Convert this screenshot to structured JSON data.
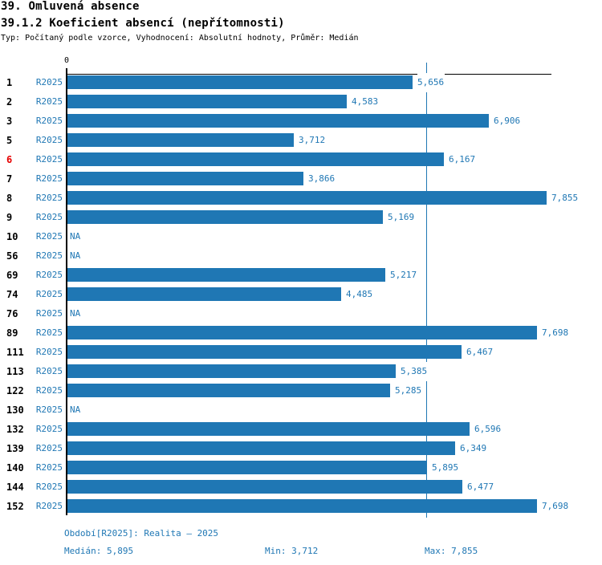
{
  "header": {
    "title1": "39. Omluvená absence",
    "title2": "39.1.2 Koeficient absencí (nepřítomnosti)",
    "subtitle": "Typ: Počítaný podle vzorce, Vyhodnocení: Absolutní hodnoty, Průměr: Medián"
  },
  "chart_data": {
    "type": "bar",
    "orientation": "horizontal",
    "axis": {
      "origin_label": "0"
    },
    "period_label": "R2025",
    "na_label": "NA",
    "median_value": 5895,
    "categories": [
      "1",
      "2",
      "3",
      "5",
      "6",
      "7",
      "8",
      "9",
      "10",
      "56",
      "69",
      "74",
      "76",
      "89",
      "111",
      "113",
      "122",
      "130",
      "132",
      "139",
      "140",
      "144",
      "152"
    ],
    "rows": [
      {
        "id": "1",
        "period": "R2025",
        "value": 5656,
        "label": "5,656"
      },
      {
        "id": "2",
        "period": "R2025",
        "value": 4583,
        "label": "4,583"
      },
      {
        "id": "3",
        "period": "R2025",
        "value": 6906,
        "label": "6,906"
      },
      {
        "id": "5",
        "period": "R2025",
        "value": 3712,
        "label": "3,712"
      },
      {
        "id": "6",
        "period": "R2025",
        "value": 6167,
        "label": "6,167",
        "highlight": true
      },
      {
        "id": "7",
        "period": "R2025",
        "value": 3866,
        "label": "3,866"
      },
      {
        "id": "8",
        "period": "R2025",
        "value": 7855,
        "label": "7,855"
      },
      {
        "id": "9",
        "period": "R2025",
        "value": 5169,
        "label": "5,169"
      },
      {
        "id": "10",
        "period": "R2025",
        "value": null,
        "label": "NA"
      },
      {
        "id": "56",
        "period": "R2025",
        "value": null,
        "label": "NA"
      },
      {
        "id": "69",
        "period": "R2025",
        "value": 5217,
        "label": "5,217"
      },
      {
        "id": "74",
        "period": "R2025",
        "value": 4485,
        "label": "4,485"
      },
      {
        "id": "76",
        "period": "R2025",
        "value": null,
        "label": "NA"
      },
      {
        "id": "89",
        "period": "R2025",
        "value": 7698,
        "label": "7,698"
      },
      {
        "id": "111",
        "period": "R2025",
        "value": 6467,
        "label": "6,467"
      },
      {
        "id": "113",
        "period": "R2025",
        "value": 5385,
        "label": "5,385"
      },
      {
        "id": "122",
        "period": "R2025",
        "value": 5285,
        "label": "5,285"
      },
      {
        "id": "130",
        "period": "R2025",
        "value": null,
        "label": "NA"
      },
      {
        "id": "132",
        "period": "R2025",
        "value": 6596,
        "label": "6,596"
      },
      {
        "id": "139",
        "period": "R2025",
        "value": 6349,
        "label": "6,349"
      },
      {
        "id": "140",
        "period": "R2025",
        "value": 5895,
        "label": "5,895"
      },
      {
        "id": "144",
        "period": "R2025",
        "value": 6477,
        "label": "6,477"
      },
      {
        "id": "152",
        "period": "R2025",
        "value": 7698,
        "label": "7,698"
      }
    ],
    "colors": {
      "bar": "#1f77b4",
      "blue_text": "#1f77b4",
      "highlight_red": "#e60000",
      "axis_black": "#000000"
    }
  },
  "footer": {
    "period_info": "Období[R2025]: Realita – 2025",
    "median": "Medián: 5,895",
    "min": "Min: 3,712",
    "max": "Max: 7,855"
  }
}
